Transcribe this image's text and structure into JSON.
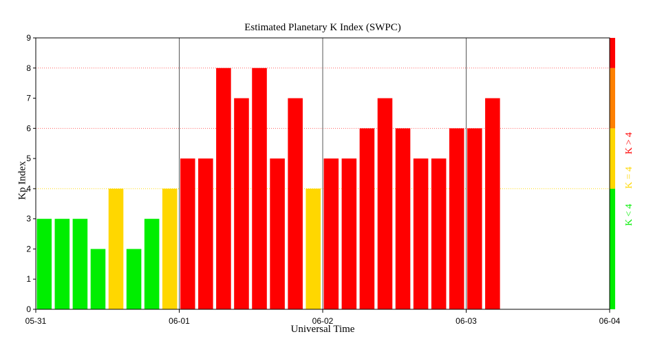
{
  "chart_data": {
    "type": "bar",
    "title": "Estimated Planetary K Index (SWPC)",
    "xlabel": "Universal Time",
    "ylabel": "Kp Index",
    "ylim": [
      0,
      9
    ],
    "yticks": [
      0,
      1,
      2,
      3,
      4,
      5,
      6,
      7,
      8,
      9
    ],
    "x_tick_labels": [
      "05-31",
      "06-01",
      "06-02",
      "06-03",
      "06-04"
    ],
    "bars_per_day": 8,
    "total_slots": 32,
    "values": [
      3,
      3,
      3,
      2,
      4,
      2,
      3,
      4,
      5,
      5,
      8,
      7,
      8,
      5,
      7,
      4,
      5,
      5,
      6,
      7,
      6,
      5,
      5,
      6,
      6,
      7
    ],
    "colors": {
      "below_4": "#00ee00",
      "equal_4": "#ffd700",
      "above_4": "#ff0000",
      "storm_orange": "#ff8000"
    },
    "legend": {
      "below": "K < 4",
      "equal": "K = 4",
      "above": "K > 4"
    },
    "reference_lines": [
      {
        "value": 4,
        "color": "#ffd700"
      },
      {
        "value": 6,
        "color": "#ff6060"
      },
      {
        "value": 8,
        "color": "#ff6060"
      }
    ]
  }
}
